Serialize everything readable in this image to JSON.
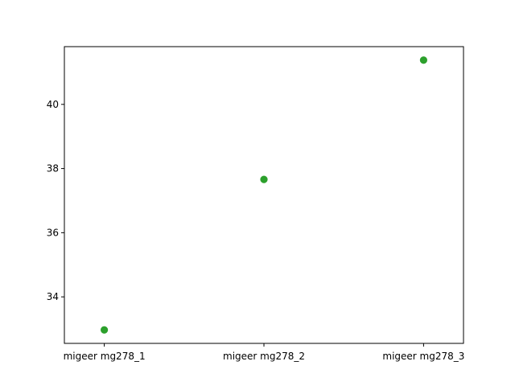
{
  "chart_data": {
    "type": "scatter",
    "title": "",
    "xlabel": "",
    "ylabel": "",
    "categories": [
      "migeer mg278_1",
      "migeer mg278_2",
      "migeer mg278_3"
    ],
    "series": [
      {
        "color": "#2ca02c",
        "values": [
          32.97,
          37.66,
          41.38
        ]
      }
    ],
    "ylim": [
      32.55,
      41.8
    ],
    "yticks": [
      34,
      36,
      38,
      40
    ],
    "grid": false,
    "legend": "none"
  }
}
